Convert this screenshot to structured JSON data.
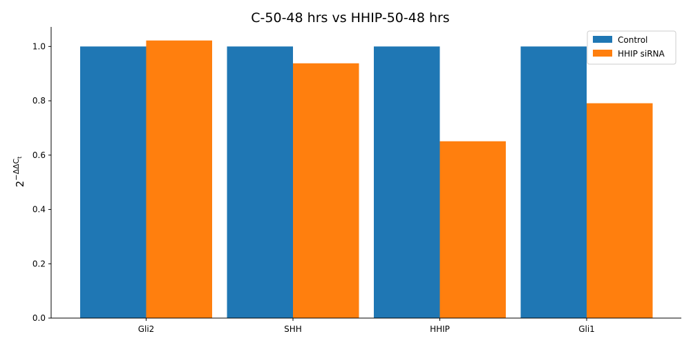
{
  "chart_data": {
    "type": "bar",
    "title": "C-50-48 hrs vs HHIP-50-48 hrs",
    "xlabel": "",
    "ylabel": "2",
    "ylabel_superscript": "−ΔΔC",
    "ylabel_subscript": "t",
    "categories": [
      "Gli2",
      "SHH",
      "HHIP",
      "Gli1"
    ],
    "series": [
      {
        "name": "Control",
        "color": "#1f77b4",
        "values": [
          1.0,
          1.0,
          1.0,
          1.0
        ]
      },
      {
        "name": "HHIP siRNA",
        "color": "#ff7f0e",
        "values": [
          1.022,
          0.938,
          0.651,
          0.791
        ]
      }
    ],
    "ylim": [
      0,
      1.072
    ],
    "yticks": [
      0.0,
      0.2,
      0.4,
      0.6,
      0.8,
      1.0
    ],
    "ytick_labels": [
      "0.0",
      "0.2",
      "0.4",
      "0.6",
      "0.8",
      "1.0"
    ],
    "grid": false,
    "legend_position": "top-right"
  }
}
